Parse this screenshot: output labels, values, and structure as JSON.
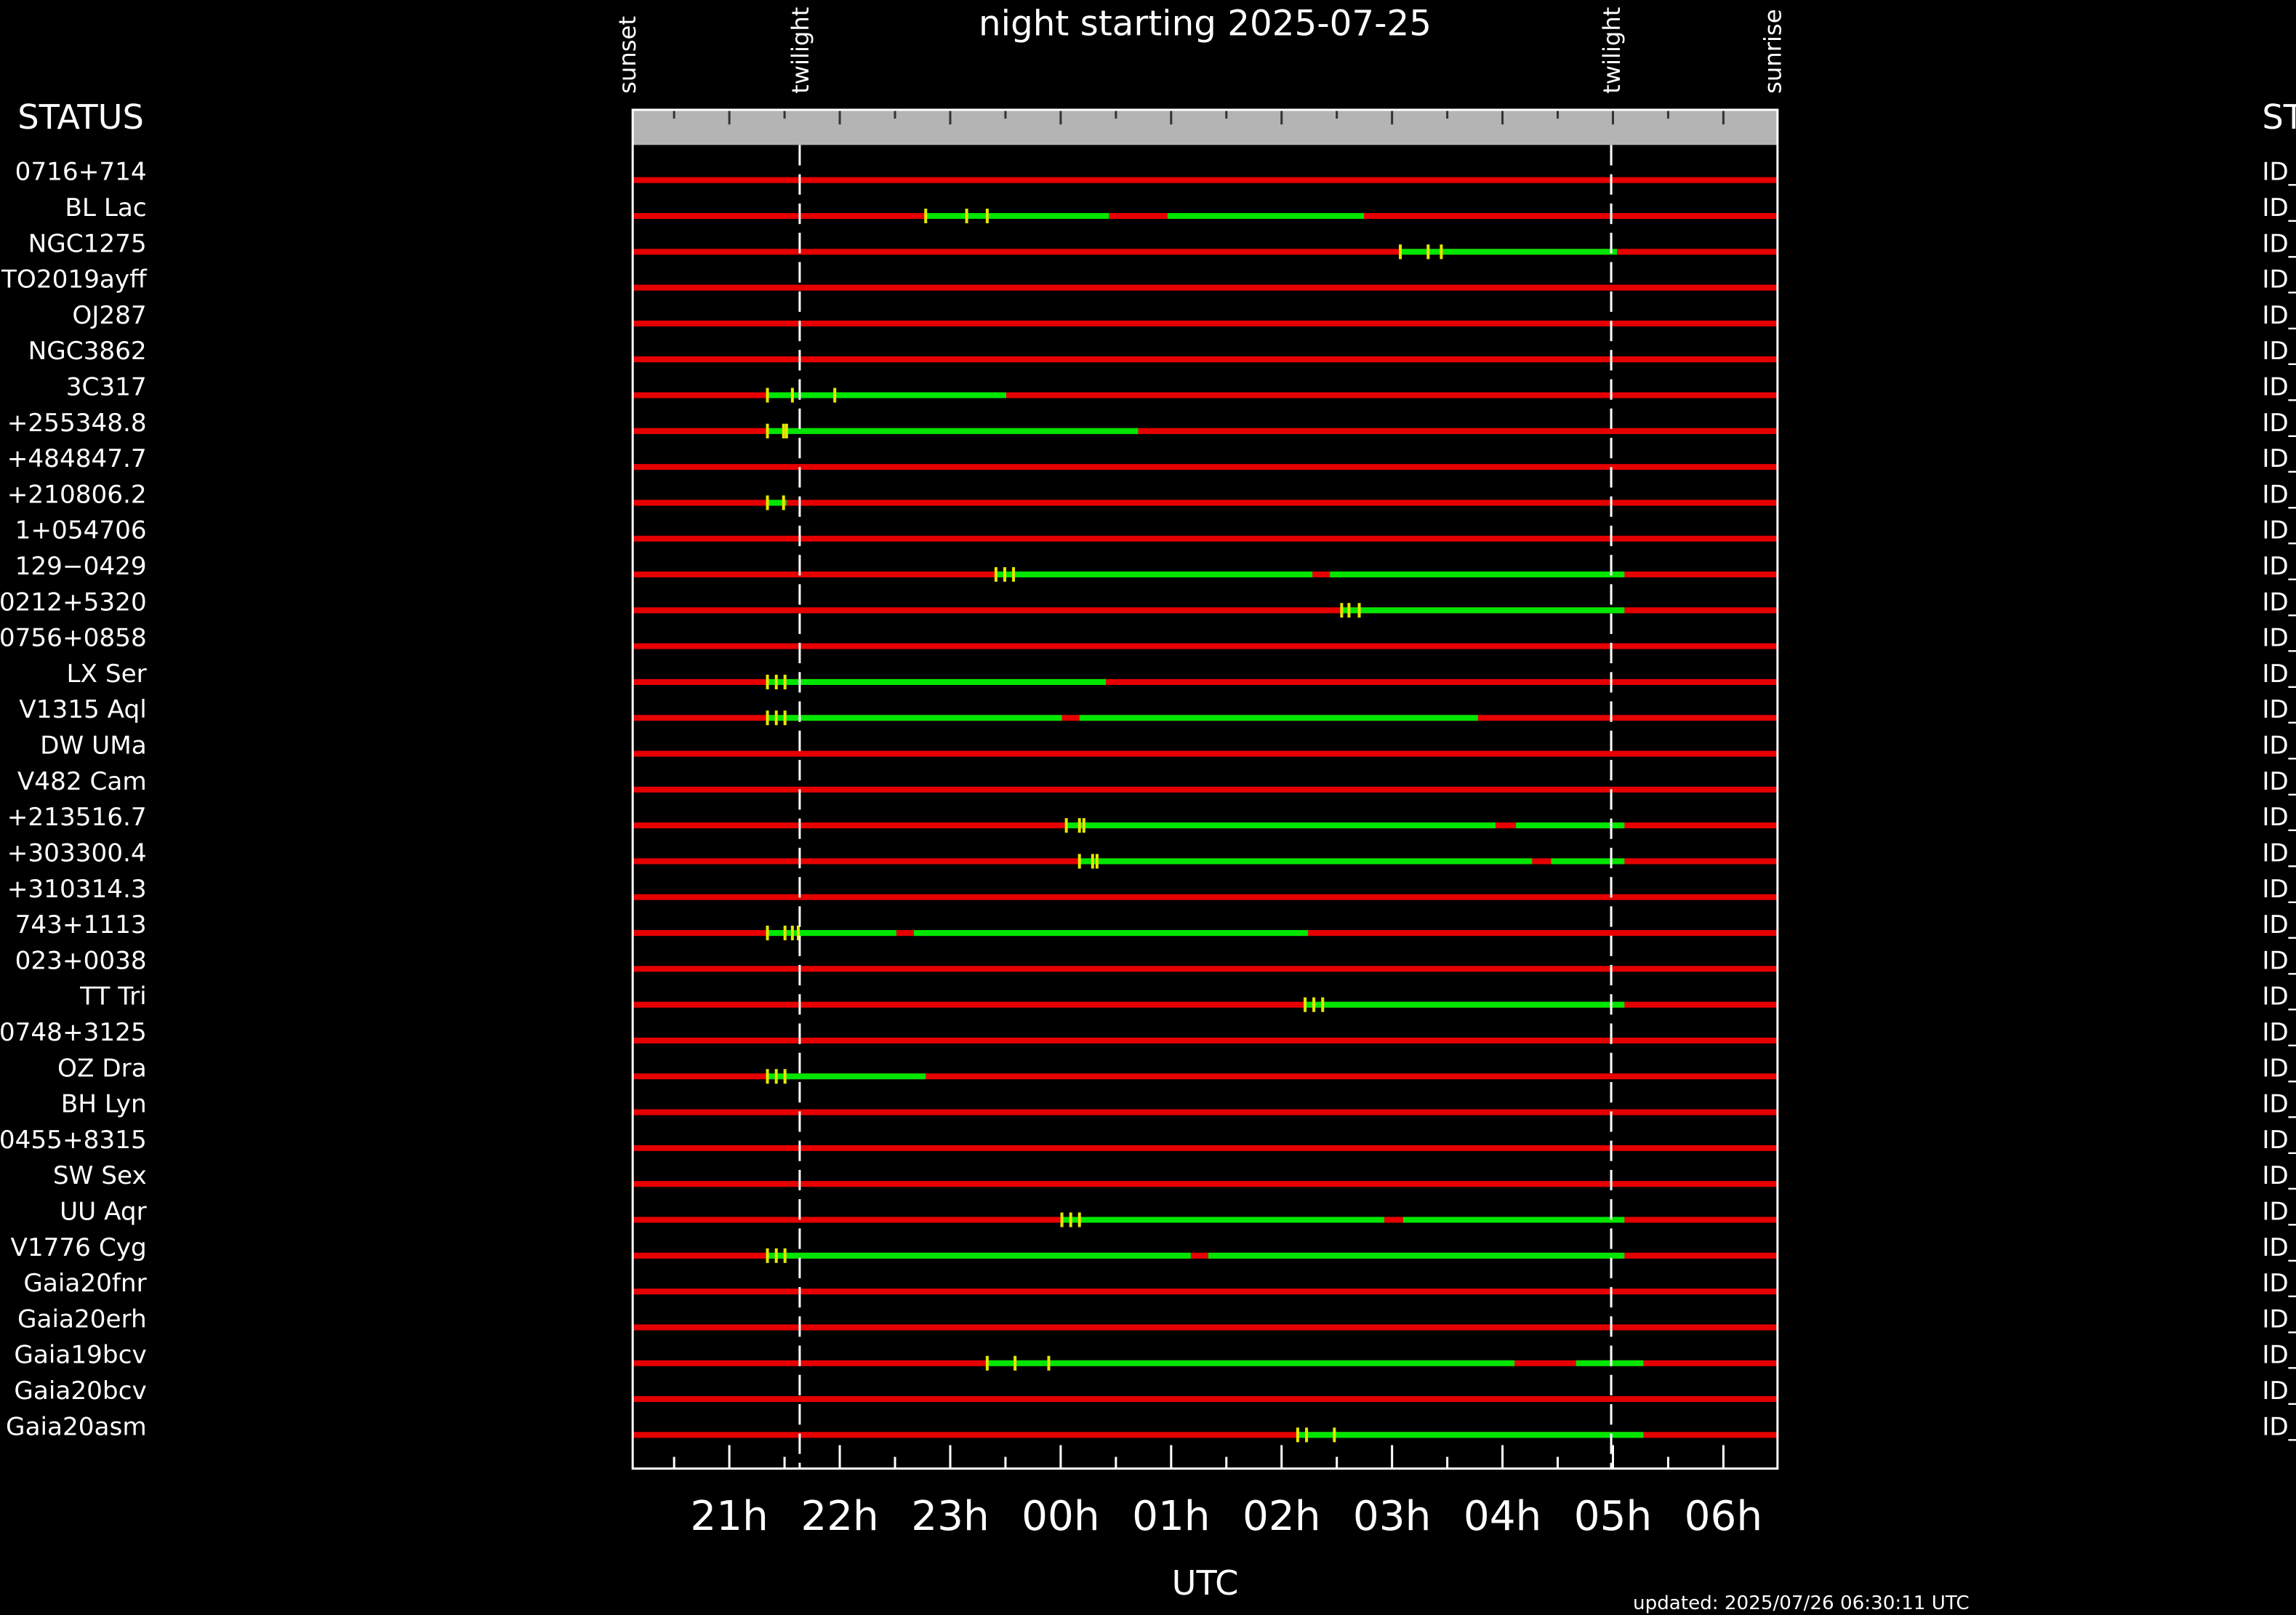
{
  "chart_data": {
    "type": "visibility",
    "title": "night starting 2025-07-25",
    "xlabel": "UTC",
    "footer": "updated: 2025/07/26 06:30:11 UTC",
    "left_header": "STATUS",
    "right_header": "ST",
    "xlim": [
      20.125,
      30.49
    ],
    "xticks": [
      {
        "value": 21,
        "label": "21h"
      },
      {
        "value": 22,
        "label": "22h"
      },
      {
        "value": 23,
        "label": "23h"
      },
      {
        "value": 24,
        "label": "00h"
      },
      {
        "value": 25,
        "label": "01h"
      },
      {
        "value": 26,
        "label": "02h"
      },
      {
        "value": 27,
        "label": "03h"
      },
      {
        "value": 28,
        "label": "04h"
      },
      {
        "value": 29,
        "label": "05h"
      },
      {
        "value": 30,
        "label": "06h"
      }
    ],
    "xminorticks": [
      20.5,
      21.5,
      22.5,
      23.5,
      24.5,
      25.5,
      26.5,
      27.5,
      28.5,
      29.5
    ],
    "events": [
      {
        "label": "sunset",
        "value": 20.07
      },
      {
        "label": "twilight",
        "value": 21.637,
        "dashed": true
      },
      {
        "label": "twilight",
        "value": 28.984,
        "dashed": true
      },
      {
        "label": "sunrise",
        "value": 30.44
      }
    ],
    "line_color": "#e60000",
    "window_color": "#00e600",
    "marker_color": "#e6e600",
    "rows": [
      {
        "name": "0716+714",
        "status": "ID_",
        "windows": [],
        "markers": []
      },
      {
        "name": "BL Lac",
        "status": "ID_",
        "windows": [
          [
            22.778,
            24.438
          ],
          [
            24.968,
            26.746
          ]
        ],
        "markers": [
          22.778,
          23.149,
          23.335
        ]
      },
      {
        "name": "NGC1275",
        "status": "ID_",
        "windows": [
          [
            27.075,
            29.037
          ]
        ],
        "markers": [
          27.075,
          27.327,
          27.446
        ]
      },
      {
        "name": "TO2019ayff",
        "status": "ID_",
        "windows": [],
        "markers": []
      },
      {
        "name": "OJ287",
        "status": "ID_",
        "windows": [],
        "markers": []
      },
      {
        "name": "NGC3862",
        "status": "ID_",
        "windows": [],
        "markers": []
      },
      {
        "name": "3C317",
        "status": "ID_",
        "windows": [
          [
            21.345,
            23.507
          ]
        ],
        "markers": [
          21.345,
          21.571,
          21.955
        ]
      },
      {
        "name": "+255348.8",
        "status": "ID_",
        "windows": [
          [
            21.345,
            24.701
          ]
        ],
        "markers": [
          21.345,
          21.491,
          21.518
        ]
      },
      {
        "name": "+484847.7",
        "status": "ID_",
        "windows": [],
        "markers": []
      },
      {
        "name": "+210806.2",
        "status": "ID_",
        "windows": [
          [
            21.345,
            21.518
          ]
        ],
        "markers": [
          21.345,
          21.491
        ]
      },
      {
        "name": "1+054706",
        "status": "ID_",
        "windows": [],
        "markers": []
      },
      {
        "name": "129−0429",
        "status": "ID_",
        "windows": [
          [
            23.414,
            26.279
          ],
          [
            26.438,
            29.104
          ]
        ],
        "markers": [
          23.414,
          23.494,
          23.573
        ]
      },
      {
        "name": "0212+5320",
        "status": "ID_",
        "windows": [
          [
            26.544,
            29.104
          ]
        ],
        "markers": [
          26.544,
          26.61,
          26.703
        ]
      },
      {
        "name": "0756+0858",
        "status": "ID_",
        "windows": [],
        "markers": []
      },
      {
        "name": "LX Ser",
        "status": "ID_",
        "windows": [
          [
            21.345,
            24.409
          ]
        ],
        "markers": [
          21.345,
          21.425,
          21.504
        ]
      },
      {
        "name": "V1315 Aql",
        "status": "ID_",
        "windows": [
          [
            21.345,
            24.011
          ],
          [
            24.17,
            27.778
          ]
        ],
        "markers": [
          21.345,
          21.425,
          21.504
        ]
      },
      {
        "name": "DW UMa",
        "status": "ID_",
        "windows": [],
        "markers": []
      },
      {
        "name": "V482 Cam",
        "status": "ID_",
        "windows": [],
        "markers": []
      },
      {
        "name": "+213516.7",
        "status": "ID_",
        "windows": [
          [
            24.051,
            27.937
          ],
          [
            28.122,
            29.104
          ]
        ],
        "markers": [
          24.051,
          24.17,
          24.21
        ]
      },
      {
        "name": "+303300.4",
        "status": "ID_",
        "windows": [
          [
            24.17,
            28.268
          ],
          [
            28.441,
            29.104
          ]
        ],
        "markers": [
          24.17,
          24.289,
          24.329
        ]
      },
      {
        "name": "+310314.3",
        "status": "ID_",
        "windows": [],
        "markers": []
      },
      {
        "name": "743+1113",
        "status": "ID_",
        "windows": [
          [
            21.345,
            22.512
          ],
          [
            22.671,
            26.239
          ]
        ],
        "markers": [
          21.345,
          21.504,
          21.571,
          21.624
        ]
      },
      {
        "name": "023+0038",
        "status": "ID_",
        "windows": [],
        "markers": []
      },
      {
        "name": "TT Tri",
        "status": "ID_",
        "windows": [
          [
            26.213,
            29.104
          ]
        ],
        "markers": [
          26.213,
          26.292,
          26.372
        ]
      },
      {
        "name": "0748+3125",
        "status": "ID_",
        "windows": [],
        "markers": []
      },
      {
        "name": "OZ Dra",
        "status": "ID_",
        "windows": [
          [
            21.345,
            22.778
          ]
        ],
        "markers": [
          21.345,
          21.425,
          21.504
        ]
      },
      {
        "name": "BH Lyn",
        "status": "ID_",
        "windows": [],
        "markers": []
      },
      {
        "name": "0455+8315",
        "status": "ID_",
        "windows": [],
        "markers": []
      },
      {
        "name": "SW Sex",
        "status": "ID_",
        "windows": [],
        "markers": []
      },
      {
        "name": "UU Aqr",
        "status": "ID_",
        "windows": [
          [
            24.011,
            26.929
          ],
          [
            27.101,
            29.104
          ]
        ],
        "markers": [
          24.011,
          24.091,
          24.17
        ]
      },
      {
        "name": "V1776 Cyg",
        "status": "ID_",
        "windows": [
          [
            21.345,
            25.178
          ],
          [
            25.337,
            29.104
          ]
        ],
        "markers": [
          21.345,
          21.425,
          21.504
        ]
      },
      {
        "name": "Gaia20fnr",
        "status": "ID_",
        "windows": [],
        "markers": []
      },
      {
        "name": "Gaia20erh",
        "status": "ID_",
        "windows": [],
        "markers": []
      },
      {
        "name": "Gaia19bcv",
        "status": "ID_",
        "windows": [
          [
            23.335,
            28.109
          ],
          [
            28.666,
            29.276
          ]
        ],
        "markers": [
          23.335,
          23.587,
          23.892
        ]
      },
      {
        "name": "Gaia20bcv",
        "status": "ID_",
        "windows": [],
        "markers": []
      },
      {
        "name": "Gaia20asm",
        "status": "ID_",
        "windows": [
          [
            26.146,
            29.276
          ]
        ],
        "markers": [
          26.146,
          26.226,
          26.478
        ]
      }
    ]
  }
}
